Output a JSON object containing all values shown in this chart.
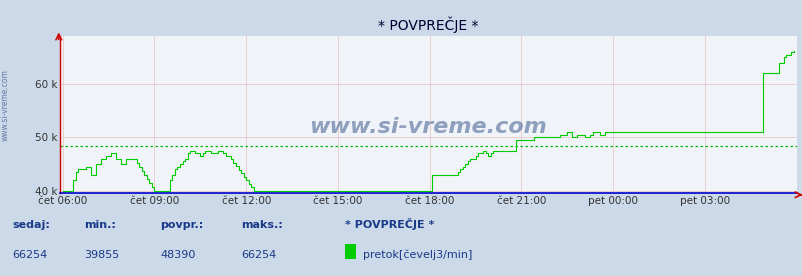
{
  "title": "* POVPREČJE *",
  "bg_color": "#ccd9e8",
  "plot_bg_color": "#f0f4f8",
  "line_color": "#00cc00",
  "avg_line_color": "#00bb00",
  "grid_color": "#e8c8c8",
  "x_axis_color": "#0000cc",
  "y_axis_color": "#cc0000",
  "watermark": "www.si-vreme.com",
  "sidebar_text": "www.si-vreme.com",
  "x_labels": [
    "čet 06:00",
    "čet 09:00",
    "čet 12:00",
    "čet 15:00",
    "čet 18:00",
    "čet 21:00",
    "pet 00:00",
    "pet 03:00"
  ],
  "ylim": [
    39500,
    69000
  ],
  "yticks": [
    40000,
    50000,
    60000
  ],
  "ytick_labels": [
    "40 k",
    "50 k",
    "60 k"
  ],
  "avg_value": 48390,
  "footer_labels": [
    "sedaj:",
    "min.:",
    "povpr.:",
    "maks.:"
  ],
  "footer_values": [
    "66254",
    "39855",
    "48390",
    "66254"
  ],
  "legend_label": "* POVPREČJE *",
  "legend_series": "pretok[čevelj3/min]",
  "title_fontsize": 10,
  "tick_fontsize": 7.5,
  "footer_label_fontsize": 8,
  "footer_value_fontsize": 8,
  "watermark_color": "#1a3a7a",
  "watermark_alpha": 0.45,
  "sidebar_color": "#1a3a7a",
  "sidebar_alpha": 0.6
}
